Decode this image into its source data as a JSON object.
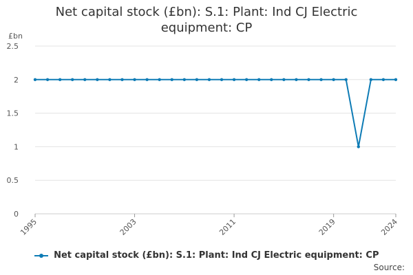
{
  "chart_data": {
    "type": "line",
    "title": "Net capital stock (£bn): S.1: Plant: Ind CJ Electric equipment: CP",
    "ylabel": "£bn",
    "xlabel": "",
    "ylim": [
      0,
      2.5
    ],
    "yticks": [
      "0",
      "0.5",
      "1",
      "1.5",
      "2",
      "2.5"
    ],
    "xlim": [
      1995,
      2024
    ],
    "xticks": [
      "1995",
      "2003",
      "2011",
      "2019",
      "2024"
    ],
    "grid": true,
    "legend_position": "bottom",
    "series": [
      {
        "name": "Net capital stock (£bn): S.1: Plant: Ind CJ Electric equipment: CP",
        "color": "#0d7bb5",
        "x": [
          1995,
          1996,
          1997,
          1998,
          1999,
          2000,
          2001,
          2002,
          2003,
          2004,
          2005,
          2006,
          2007,
          2008,
          2009,
          2010,
          2011,
          2012,
          2013,
          2014,
          2015,
          2016,
          2017,
          2018,
          2019,
          2020,
          2021,
          2022,
          2023,
          2024
        ],
        "values": [
          2,
          2,
          2,
          2,
          2,
          2,
          2,
          2,
          2,
          2,
          2,
          2,
          2,
          2,
          2,
          2,
          2,
          2,
          2,
          2,
          2,
          2,
          2,
          2,
          2,
          2,
          1,
          2,
          2,
          2
        ]
      }
    ]
  },
  "source_label": "Source:"
}
